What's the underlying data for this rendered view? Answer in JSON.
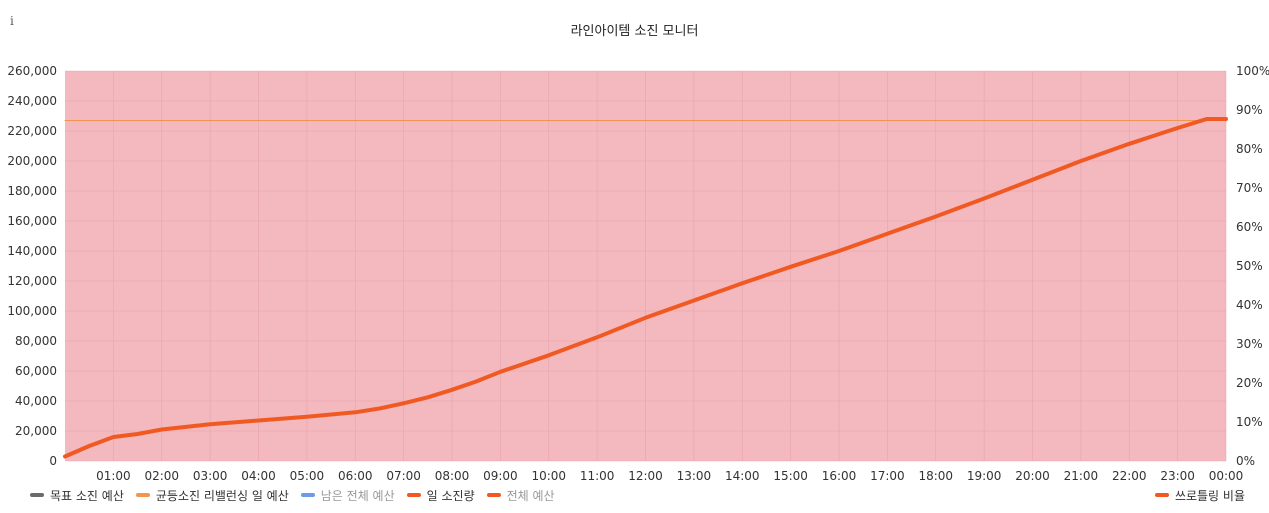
{
  "title": "라인아이템 소진 모니터",
  "info_icon_glyph": "i",
  "legend_left": [
    {
      "label": "목표 소진 예산",
      "color": "#6b6b6b",
      "muted": false
    },
    {
      "label": "균등소진 리밸런싱 일 예산",
      "color": "#f29552",
      "muted": false
    },
    {
      "label": "남은 전체 예산",
      "color": "#6c9be8",
      "muted": true
    },
    {
      "label": "일 소진량",
      "color": "#f05a22",
      "muted": false
    },
    {
      "label": "전체 예산",
      "color": "#f05a22",
      "muted": true
    }
  ],
  "legend_right": [
    {
      "label": "쓰로틀링 비율",
      "color": "#f05a22",
      "muted": false
    }
  ],
  "chart_data": {
    "type": "line",
    "title": "라인아이템 소진 모니터",
    "x_tick_labels": [
      "01:00",
      "02:00",
      "03:00",
      "04:00",
      "05:00",
      "06:00",
      "07:00",
      "08:00",
      "09:00",
      "10:00",
      "11:00",
      "12:00",
      "13:00",
      "14:00",
      "15:00",
      "16:00",
      "17:00",
      "18:00",
      "19:00",
      "20:00",
      "21:00",
      "22:00",
      "23:00",
      "00:00"
    ],
    "y_left_ticks": [
      "0",
      "20,000",
      "40,000",
      "60,000",
      "80,000",
      "100,000",
      "120,000",
      "140,000",
      "160,000",
      "180,000",
      "200,000",
      "220,000",
      "240,000",
      "260,000"
    ],
    "y_right_ticks": [
      "0%",
      "10%",
      "20%",
      "30%",
      "40%",
      "50%",
      "60%",
      "70%",
      "80%",
      "90%",
      "100%"
    ],
    "ylim_left": [
      0,
      260000
    ],
    "ylim_right": [
      0,
      100
    ],
    "xlim_hours": [
      0,
      24
    ],
    "grid": true,
    "legend_position": "bottom",
    "series": [
      {
        "name": "균등소진 리밸런싱 일 예산",
        "axis": "left",
        "color": "#f29552",
        "x_hours": [
          0,
          24
        ],
        "values": [
          227000,
          227000
        ]
      },
      {
        "name": "일 소진량",
        "axis": "left",
        "color": "#f05a22",
        "x_hours": [
          0,
          0.5,
          1,
          1.5,
          2,
          3,
          4,
          5,
          6,
          6.5,
          7,
          7.5,
          8,
          8.5,
          9,
          10,
          11,
          12,
          13,
          14,
          15,
          16,
          17,
          18,
          19,
          20,
          21,
          22,
          23,
          23.6,
          24
        ],
        "values": [
          3000,
          10000,
          16000,
          18000,
          21000,
          24500,
          27000,
          29500,
          32500,
          35000,
          38500,
          42500,
          47500,
          53000,
          59500,
          70500,
          82500,
          95500,
          107000,
          118500,
          129500,
          140000,
          151500,
          163000,
          175000,
          187500,
          200000,
          211500,
          222000,
          228000,
          228000
        ]
      },
      {
        "name": "쓰로틀링 비율",
        "axis": "right",
        "color": "#f4b8bf",
        "type": "area",
        "x_hours": [
          0,
          24
        ],
        "values": [
          100,
          100
        ]
      }
    ]
  }
}
